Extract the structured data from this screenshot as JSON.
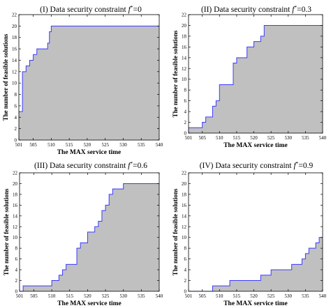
{
  "chart_data": [
    {
      "type": "area",
      "title_prefix": "(I) Data security constraint",
      "title_var": "f",
      "title_sup": "*",
      "title_value": "=0",
      "xlabel": "The MAX service time",
      "ylabel": "The number of feasible solutions",
      "xlim": [
        501,
        540
      ],
      "ylim": [
        0,
        22
      ],
      "xticks": [
        501,
        505,
        510,
        515,
        520,
        525,
        530,
        535,
        540
      ],
      "yticks": [
        0,
        2,
        4,
        6,
        8,
        10,
        12,
        14,
        16,
        18,
        20,
        22
      ],
      "series": [
        {
          "style": "step",
          "x": [
            501,
            502,
            503,
            504,
            505,
            506,
            507,
            509,
            509.5,
            510,
            540
          ],
          "y": [
            5,
            12,
            13,
            14,
            15,
            16,
            16,
            17,
            19,
            20,
            20
          ]
        }
      ]
    },
    {
      "type": "area",
      "title_prefix": "(II) Data security constraint",
      "title_var": "f",
      "title_sup": "*",
      "title_value": "=0.3",
      "xlabel": "The MAX service time",
      "ylabel": "The number of feasible solutions",
      "xlim": [
        501,
        540
      ],
      "ylim": [
        0,
        22
      ],
      "xticks": [
        501,
        505,
        510,
        515,
        520,
        525,
        530,
        535,
        540
      ],
      "yticks": [
        0,
        2,
        4,
        6,
        8,
        10,
        12,
        14,
        16,
        18,
        20,
        22
      ],
      "series": [
        {
          "style": "step",
          "x": [
            501,
            505,
            506,
            507,
            508,
            509,
            510,
            513,
            514,
            515,
            517,
            518,
            519,
            520,
            521,
            522,
            523,
            540
          ],
          "y": [
            1,
            2,
            3,
            3,
            5,
            6,
            9,
            9,
            13,
            14,
            14,
            16,
            16,
            17,
            17,
            18,
            20,
            20
          ]
        }
      ]
    },
    {
      "type": "area",
      "title_prefix": "(III) Data security constraint",
      "title_var": "f",
      "title_sup": "*",
      "title_value": "=0.6",
      "xlabel": "The MAX service time",
      "ylabel": "The number of feasible solutions",
      "xlim": [
        501,
        540
      ],
      "ylim": [
        0,
        22
      ],
      "xticks": [
        501,
        505,
        510,
        515,
        520,
        525,
        530,
        535,
        540
      ],
      "yticks": [
        0,
        2,
        4,
        6,
        8,
        10,
        12,
        14,
        16,
        18,
        20,
        22
      ],
      "series": [
        {
          "style": "step",
          "x": [
            501,
            502,
            510,
            511,
            512,
            513,
            514,
            515,
            517,
            518,
            519,
            520,
            521,
            522,
            523,
            524,
            525,
            526,
            527,
            530,
            540
          ],
          "y": [
            0,
            1,
            2,
            2,
            3,
            4,
            5,
            5,
            8,
            9,
            9,
            11,
            11,
            12,
            13,
            15,
            16,
            18,
            19,
            20,
            20
          ]
        }
      ]
    },
    {
      "type": "area",
      "title_prefix": "(IV) Data security constraint",
      "title_var": "f",
      "title_sup": "*",
      "title_value": "=0.9",
      "xlabel": "The MAX service time",
      "ylabel": "The number of feasible solutions",
      "xlim": [
        501,
        540
      ],
      "ylim": [
        0,
        22
      ],
      "xticks": [
        501,
        505,
        510,
        515,
        520,
        525,
        530,
        535,
        540
      ],
      "yticks": [
        0,
        2,
        4,
        6,
        8,
        10,
        12,
        14,
        16,
        18,
        20,
        22
      ],
      "series": [
        {
          "style": "step",
          "x": [
            501,
            508,
            513,
            522,
            523,
            525,
            528,
            531,
            533,
            534,
            535,
            536,
            537,
            538,
            539,
            540
          ],
          "y": [
            0,
            1,
            2,
            3,
            3,
            4,
            4,
            5,
            5,
            6,
            7,
            8,
            8,
            9,
            10,
            10
          ]
        }
      ]
    }
  ]
}
